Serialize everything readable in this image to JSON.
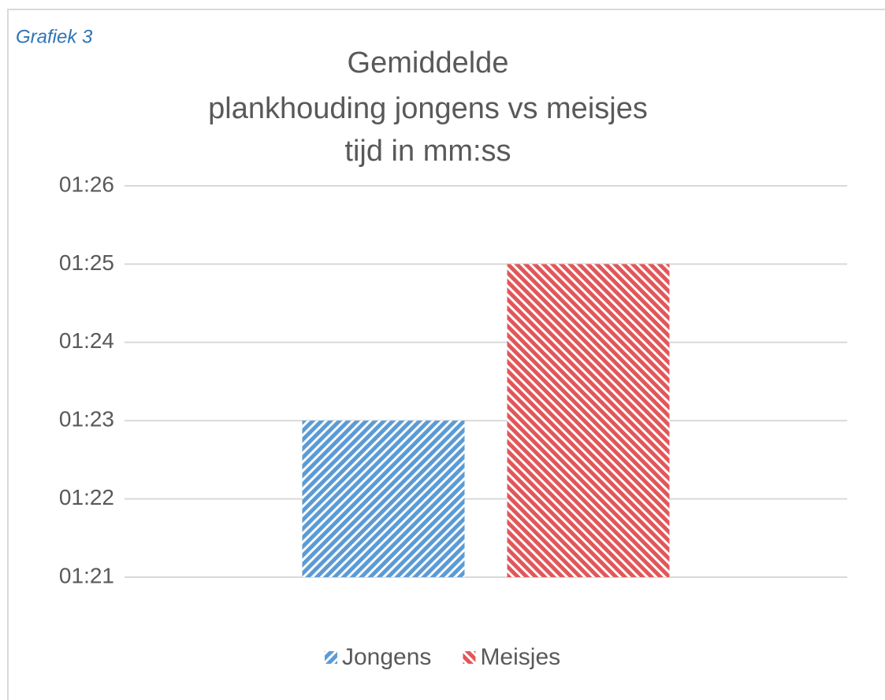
{
  "caption": "Grafiek 3",
  "chart_data": {
    "type": "bar",
    "title": [
      "Gemiddelde",
      "plankhouding jongens vs meisjes",
      "tijd in mm:ss"
    ],
    "categories": [
      null
    ],
    "series": [
      {
        "name": "Jongens",
        "color": "#5b9bd5",
        "values": [
          83
        ]
      },
      {
        "name": "Meisjes",
        "color": "#e15759",
        "values": [
          85
        ]
      }
    ],
    "ylim": [
      81,
      86
    ],
    "yticks": [
      {
        "value": 81,
        "label": "01:21"
      },
      {
        "value": 82,
        "label": "01:22"
      },
      {
        "value": 83,
        "label": "01:23"
      },
      {
        "value": 84,
        "label": "01:24"
      },
      {
        "value": 85,
        "label": "01:25"
      },
      {
        "value": 86,
        "label": "01:26"
      }
    ],
    "grid": true,
    "legend": "bottom",
    "hatch": true
  }
}
